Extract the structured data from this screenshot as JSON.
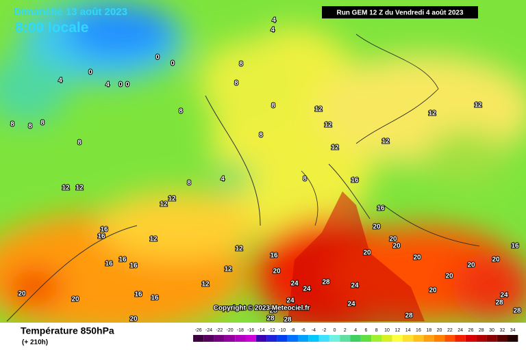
{
  "header": {
    "date": "Dimanche 13 août 2023",
    "time": "8:00 locale",
    "run": "Run GEM 12 Z du Vendredi 4 août 2023"
  },
  "map": {
    "copyright": "Copyright © 2023 Meteociel.fr",
    "contour_labels": [
      0,
      0,
      0,
      4,
      4,
      4,
      4,
      0,
      0,
      8,
      8,
      8,
      8,
      8,
      8,
      8,
      8,
      8,
      4,
      8,
      8,
      12,
      12,
      12,
      12,
      12,
      12,
      12,
      12,
      12,
      12,
      12,
      12,
      12,
      12,
      16,
      16,
      16,
      16,
      16,
      16,
      16,
      16,
      16,
      16,
      16,
      20,
      20,
      20,
      20,
      20,
      20,
      20,
      20,
      20,
      20,
      20,
      20,
      20,
      24,
      24,
      24,
      24,
      24,
      24,
      28,
      28,
      28,
      28,
      28,
      28,
      28
    ]
  },
  "footer": {
    "title": "Température 850hPa",
    "lead": "(+ 210h)"
  },
  "legend": {
    "levels": [
      -26,
      -24,
      -22,
      -20,
      -18,
      -16,
      -14,
      -12,
      -10,
      -8,
      -6,
      -4,
      -2,
      0,
      2,
      4,
      6,
      8,
      10,
      12,
      14,
      16,
      18,
      20,
      22,
      24,
      26,
      28,
      30,
      32,
      34
    ],
    "colors": [
      "#3a0040",
      "#55005e",
      "#74007e",
      "#92009e",
      "#b000bb",
      "#cc00d6",
      "#3c00b4",
      "#2020d8",
      "#0040f0",
      "#0070ff",
      "#00a0ff",
      "#00c8ff",
      "#40e0ff",
      "#70f0e0",
      "#60e0a0",
      "#40d060",
      "#60e040",
      "#a0f030",
      "#d8f020",
      "#ffff40",
      "#ffe030",
      "#ffc020",
      "#ffa010",
      "#ff8000",
      "#ff5000",
      "#f02000",
      "#d80000",
      "#b00000",
      "#880000",
      "#580000",
      "#200000"
    ]
  }
}
